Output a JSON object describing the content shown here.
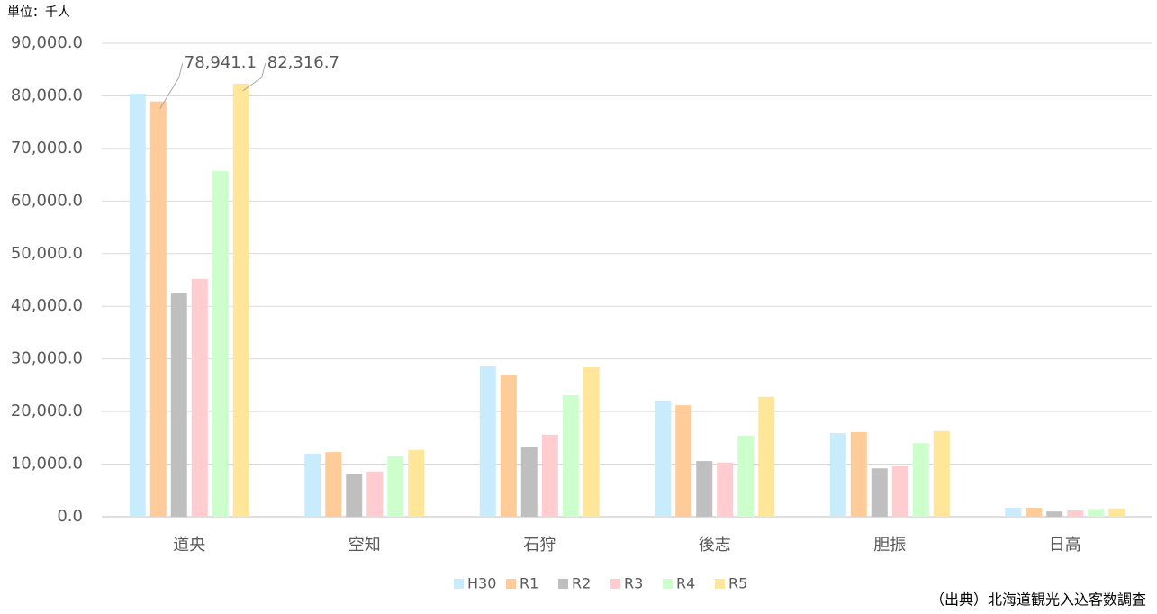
{
  "chart_data": {
    "type": "bar",
    "unit_label": "単位：千人",
    "source": "（出典）北海道観光入込客数調査",
    "categories": [
      "道央",
      "空知",
      "石狩",
      "後志",
      "胆振",
      "日高"
    ],
    "series": [
      {
        "name": "H30",
        "color": "#c9ecfd",
        "values": [
          80400,
          12000,
          28600,
          22100,
          15900,
          1700
        ]
      },
      {
        "name": "R1",
        "color": "#ffcc99",
        "values": [
          78941.1,
          12300,
          27000,
          21200,
          16100,
          1700
        ],
        "value_labels": [
          "78,941.1",
          null,
          null,
          null,
          null,
          null
        ]
      },
      {
        "name": "R2",
        "color": "#bfbfbf",
        "values": [
          42600,
          8200,
          13300,
          10600,
          9200,
          1000
        ]
      },
      {
        "name": "R3",
        "color": "#ffccd0",
        "values": [
          45200,
          8600,
          15600,
          10300,
          9600,
          1200
        ]
      },
      {
        "name": "R4",
        "color": "#ccffcc",
        "values": [
          65700,
          11500,
          23100,
          15400,
          14000,
          1500
        ]
      },
      {
        "name": "R5",
        "color": "#ffe699",
        "values": [
          82316.7,
          12700,
          28400,
          22800,
          16300,
          1600
        ],
        "value_labels": [
          "82,316.7",
          null,
          null,
          null,
          null,
          null
        ]
      }
    ],
    "ylim": [
      0,
      90000
    ],
    "yticks": [
      {
        "value": 0,
        "label": "0.0"
      },
      {
        "value": 10000,
        "label": "10,000.0"
      },
      {
        "value": 20000,
        "label": "20,000.0"
      },
      {
        "value": 30000,
        "label": "30,000.0"
      },
      {
        "value": 40000,
        "label": "40,000.0"
      },
      {
        "value": 50000,
        "label": "50,000.0"
      },
      {
        "value": 60000,
        "label": "60,000.0"
      },
      {
        "value": 70000,
        "label": "70,000.0"
      },
      {
        "value": 80000,
        "label": "80,000.0"
      },
      {
        "value": 90000,
        "label": "90,000.0"
      }
    ],
    "grid": true,
    "legend": "bottom"
  }
}
